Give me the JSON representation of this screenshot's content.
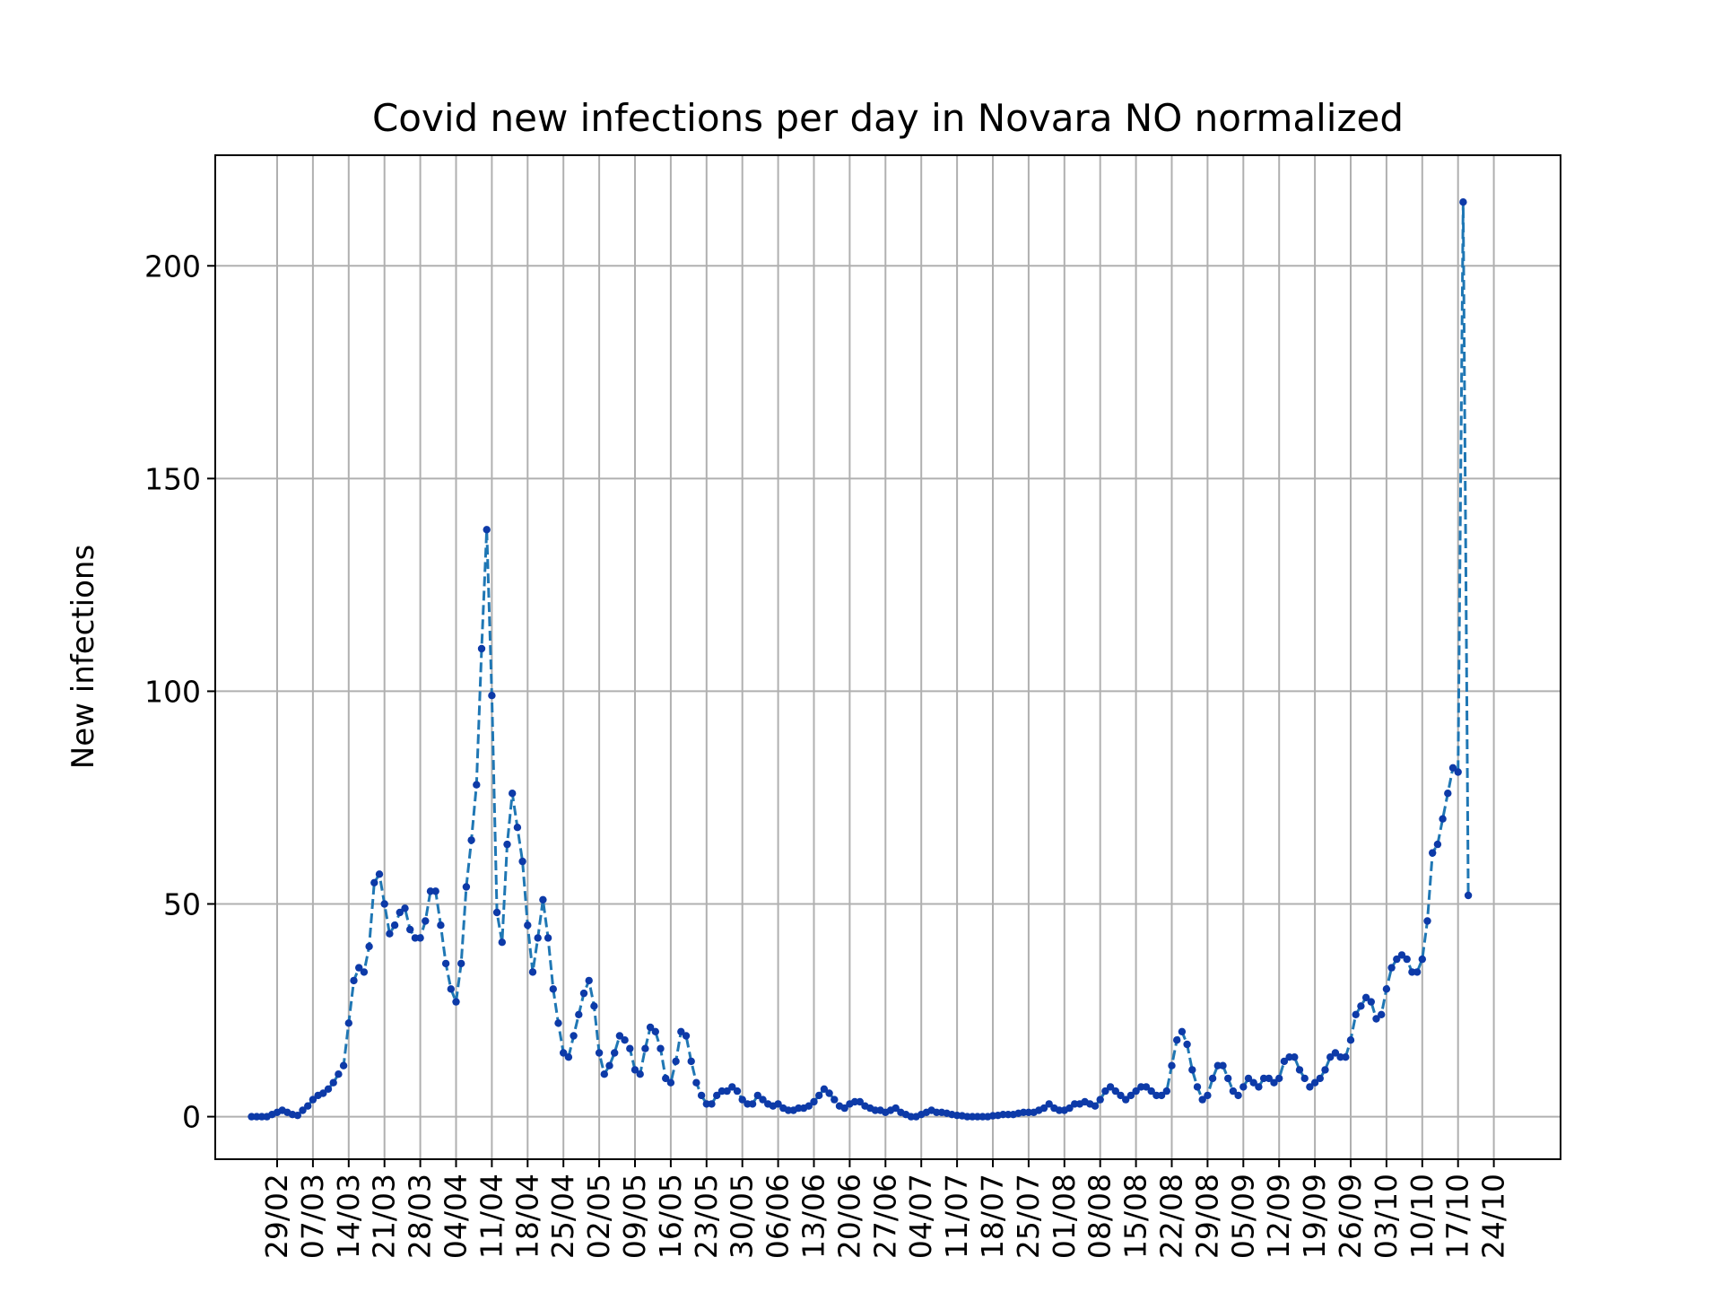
{
  "chart_data": {
    "type": "line",
    "title": "Covid new infections per day in Novara NO normalized",
    "xlabel": "",
    "ylabel": "New infections",
    "grid": true,
    "legend": "none",
    "ylim": [
      -10,
      226
    ],
    "yticks": [
      0,
      50,
      100,
      150,
      200
    ],
    "x_start_date": "2020-02-24",
    "x_tick_labels": [
      "29/02",
      "07/03",
      "14/03",
      "21/03",
      "28/03",
      "04/04",
      "11/04",
      "18/04",
      "25/04",
      "02/05",
      "09/05",
      "16/05",
      "23/05",
      "30/05",
      "06/06",
      "13/06",
      "20/06",
      "27/06",
      "04/07",
      "11/07",
      "18/07",
      "25/07",
      "01/08",
      "08/08",
      "15/08",
      "22/08",
      "29/08",
      "05/09",
      "12/09",
      "19/09",
      "26/09",
      "03/10",
      "10/10",
      "17/10",
      "24/10"
    ],
    "series": [
      {
        "name": "",
        "color": "#1f77b4",
        "marker_color": "#0d3aa8",
        "line_style": "dashed",
        "values": [
          0,
          0,
          0,
          0,
          0.5,
          1,
          1.5,
          1,
          0.5,
          0.3,
          1.5,
          2.5,
          4,
          5,
          5.5,
          6.5,
          8,
          10,
          12,
          22,
          32,
          35,
          34,
          40,
          55,
          57,
          50,
          43,
          45,
          48,
          49,
          44,
          42,
          42,
          46,
          53,
          53,
          45,
          36,
          30,
          27,
          36,
          54,
          65,
          78,
          110,
          138,
          99,
          48,
          41,
          64,
          76,
          68,
          60,
          45,
          34,
          42,
          51,
          42,
          30,
          22,
          15,
          14,
          19,
          24,
          29,
          32,
          26,
          15,
          10,
          12,
          15,
          19,
          18,
          16,
          11,
          10,
          16,
          21,
          20,
          16,
          9,
          8,
          13,
          20,
          19,
          13,
          8,
          5,
          3,
          3,
          5,
          6,
          6,
          7,
          6,
          4,
          3,
          3,
          5,
          4,
          3,
          2.5,
          3,
          2,
          1.5,
          1.5,
          2,
          2,
          2.5,
          3.5,
          5,
          6.5,
          5.5,
          4,
          2.5,
          2,
          3,
          3.5,
          3.5,
          2.5,
          2,
          1.5,
          1.5,
          1,
          1.5,
          2,
          1,
          0.5,
          0,
          0,
          0.5,
          1,
          1.5,
          1,
          1,
          0.8,
          0.5,
          0.3,
          0.2,
          0,
          0,
          0,
          0,
          0,
          0.2,
          0.3,
          0.5,
          0.5,
          0.5,
          0.8,
          1,
          1,
          1,
          1.5,
          2,
          3,
          2,
          1.5,
          1.5,
          2,
          3,
          3,
          3.5,
          3,
          2.5,
          4,
          6,
          7,
          6,
          5,
          4,
          5,
          6,
          7,
          7,
          6,
          5,
          5,
          6,
          12,
          18,
          20,
          17,
          11,
          7,
          4,
          5,
          9,
          12,
          12,
          9,
          6,
          5,
          7,
          9,
          8,
          7,
          9,
          9,
          8,
          9,
          13,
          14,
          14,
          11,
          9,
          7,
          8,
          9,
          11,
          14,
          15,
          14,
          14,
          18,
          24,
          26,
          28,
          27,
          23,
          24,
          30,
          35,
          37,
          38,
          37,
          34,
          34,
          37,
          46,
          62,
          64,
          70,
          76,
          82,
          81,
          215,
          52
        ]
      }
    ]
  }
}
